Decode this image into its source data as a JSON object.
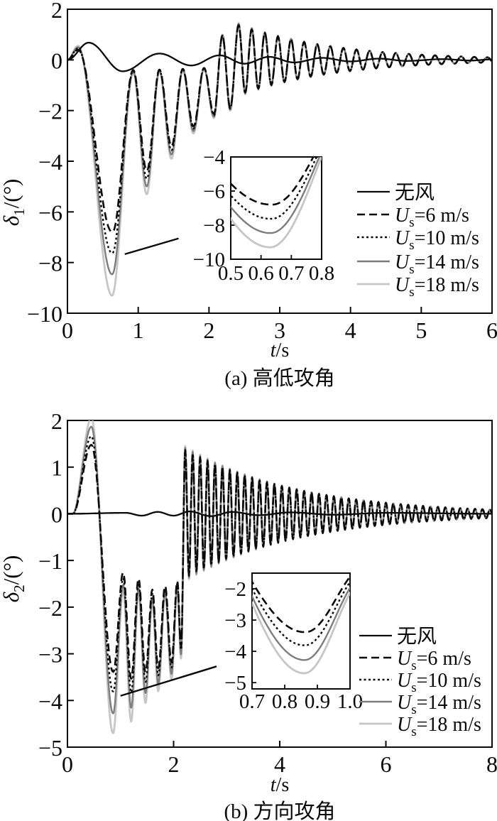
{
  "figure": {
    "background": "#ffffff"
  },
  "colors": {
    "black": "#0a0a0a",
    "gray": "#7d7d7d",
    "lightgray": "#c6c6c6"
  },
  "legend_labels": [
    {
      "key": "no-wind",
      "text": "无风"
    },
    {
      "key": "us-6",
      "var": "U",
      "sub": "s",
      "rest": "=6 m/s"
    },
    {
      "key": "us-10",
      "var": "U",
      "sub": "s",
      "rest": "=10 m/s"
    },
    {
      "key": "us-14",
      "var": "U",
      "sub": "s",
      "rest": "=14 m/s"
    },
    {
      "key": "us-18",
      "var": "U",
      "sub": "s",
      "rest": "=18 m/s"
    }
  ],
  "chart_data": [
    {
      "type": "line",
      "panel": "a",
      "caption": "(a) 高低攻角",
      "xlabel_var": "t",
      "xlabel_rest": "/s",
      "ylabel": {
        "sym": "δ",
        "sub": "1",
        "rest": "/(°)"
      },
      "xlim": [
        0,
        6
      ],
      "ylim": [
        -10,
        2
      ],
      "xticks": [
        0,
        1,
        2,
        3,
        4,
        5,
        6
      ],
      "yticks": [
        2,
        0,
        -2,
        -4,
        -6,
        -8,
        -10
      ],
      "grid": false,
      "legend_position": "right-middle",
      "series": [
        {
          "key": "no-wind",
          "name": "无风",
          "kind": "own",
          "style": {
            "color": "black",
            "dash": "solid",
            "width": 2.3
          },
          "points": [
            [
              0,
              0
            ],
            [
              0.3,
              0.68
            ],
            [
              0.78,
              -0.45
            ],
            [
              1.3,
              0.25
            ],
            [
              1.75,
              -0.22
            ],
            [
              2.15,
              0.18
            ],
            [
              2.5,
              -0.15
            ],
            [
              2.85,
              0.12
            ],
            [
              3.2,
              -0.1
            ],
            [
              3.6,
              0.08
            ],
            [
              4.0,
              -0.06
            ],
            [
              4.4,
              0.05
            ],
            [
              4.8,
              -0.04
            ],
            [
              5.3,
              0.03
            ],
            [
              5.7,
              -0.025
            ],
            [
              6,
              0.02
            ]
          ]
        },
        {
          "key": "us-6",
          "name": "Us=6 m/s",
          "kind": "wind",
          "scale": 0.73,
          "style": {
            "color": "black",
            "dash": "dashed",
            "width": 2.6
          }
        },
        {
          "key": "us-10",
          "name": "Us=10 m/s",
          "kind": "wind",
          "scale": 0.82,
          "style": {
            "color": "black",
            "dash": "dotted",
            "width": 2.4
          }
        },
        {
          "key": "us-14",
          "name": "Us=14 m/s",
          "kind": "wind",
          "scale": 0.91,
          "style": {
            "color": "gray",
            "dash": "solid",
            "width": 2.4
          }
        },
        {
          "key": "us-18",
          "name": "Us=18 m/s",
          "kind": "wind",
          "scale": 1.0,
          "style": {
            "color": "lightgray",
            "dash": "solid",
            "width": 2.8
          }
        }
      ],
      "wind_model": {
        "extrema": [
          [
            0,
            0
          ],
          [
            0.15,
            0.55
          ],
          [
            0.63,
            -9.3
          ],
          [
            0.93,
            -0.5
          ],
          [
            1.12,
            -5.3
          ],
          [
            1.3,
            -0.45
          ],
          [
            1.47,
            -3.9
          ],
          [
            1.63,
            -0.4
          ],
          [
            1.78,
            -2.9
          ],
          [
            1.93,
            -0.35
          ],
          [
            2.07,
            -2.3
          ],
          [
            2.19,
            1.0
          ],
          [
            2.3,
            -2.0
          ],
          [
            2.42,
            1.45
          ]
        ],
        "tail": {
          "t0": 2.42,
          "A": 1.45,
          "k": 0.75,
          "T": 0.185
        },
        "scale_ref": 0.63,
        "scale_relax": 0.9
      },
      "first_dip_minima": {
        "us-6": -6.8,
        "us-10": -7.6,
        "us-14": -8.5,
        "us-18": -9.3,
        "t_min": 0.63
      },
      "inset": {
        "xlim": [
          0.5,
          0.8
        ],
        "ylim": [
          -10,
          -4
        ],
        "xticks": [
          0.5,
          0.6,
          0.7,
          0.8
        ],
        "yticks": [
          -4,
          -6,
          -8,
          -10
        ]
      },
      "pointer_line": {
        "x1": 0.81,
        "y1": -7.67,
        "x2": 1.57,
        "y2": -7.05
      }
    },
    {
      "type": "line",
      "panel": "b",
      "caption": "(b) 方向攻角",
      "xlabel_var": "t",
      "xlabel_rest": "/s",
      "ylabel": {
        "sym": "δ",
        "sub": "2",
        "rest": "/(°)"
      },
      "xlim": [
        0,
        8
      ],
      "ylim": [
        -5,
        2
      ],
      "xticks": [
        0,
        2,
        4,
        6,
        8
      ],
      "yticks": [
        2,
        1,
        0,
        -1,
        -2,
        -3,
        -4,
        -5
      ],
      "grid": false,
      "legend_position": "right-middle",
      "series": [
        {
          "key": "no-wind",
          "name": "无风",
          "kind": "own",
          "style": {
            "color": "black",
            "dash": "solid",
            "width": 2.3
          },
          "points": [
            [
              0,
              0
            ],
            [
              1.1,
              0.02
            ],
            [
              1.4,
              -0.04
            ],
            [
              1.7,
              0.04
            ],
            [
              2.0,
              -0.04
            ],
            [
              2.3,
              0.05
            ],
            [
              2.7,
              -0.05
            ],
            [
              3.1,
              0.04
            ],
            [
              3.6,
              -0.03
            ],
            [
              4.2,
              0.03
            ],
            [
              5.0,
              -0.02
            ],
            [
              6.0,
              0.02
            ],
            [
              8,
              0
            ]
          ]
        },
        {
          "key": "us-6",
          "name": "Us=6 m/s",
          "kind": "wind",
          "scale": 0.72,
          "style": {
            "color": "black",
            "dash": "dashed",
            "width": 2.6
          }
        },
        {
          "key": "us-10",
          "name": "Us=10 m/s",
          "kind": "wind",
          "scale": 0.81,
          "style": {
            "color": "black",
            "dash": "dotted",
            "width": 2.4
          }
        },
        {
          "key": "us-14",
          "name": "Us=14 m/s",
          "kind": "wind",
          "scale": 0.91,
          "style": {
            "color": "gray",
            "dash": "solid",
            "width": 2.4
          }
        },
        {
          "key": "us-18",
          "name": "Us=18 m/s",
          "kind": "wind",
          "scale": 1.0,
          "style": {
            "color": "lightgray",
            "dash": "solid",
            "width": 2.8
          }
        }
      ],
      "wind_model": {
        "extrema": [
          [
            0,
            0
          ],
          [
            0.1,
            0
          ],
          [
            0.45,
            2.05
          ],
          [
            0.86,
            -4.7
          ],
          [
            1.05,
            -1.65
          ],
          [
            1.2,
            -4.45
          ],
          [
            1.34,
            -1.7
          ],
          [
            1.47,
            -4.05
          ],
          [
            1.6,
            -1.9
          ],
          [
            1.71,
            -3.8
          ],
          [
            1.84,
            -1.75
          ],
          [
            1.96,
            -3.55
          ],
          [
            2.07,
            -1.6
          ],
          [
            2.14,
            -3.1
          ],
          [
            2.22,
            1.45
          ]
        ],
        "tail": {
          "t0": 2.22,
          "A": 1.45,
          "k": 0.48,
          "T": 0.14
        },
        "scale_ref": 0.86,
        "scale_relax": 0.9
      },
      "first_dip_minima": {
        "us-6": -3.45,
        "us-10": -3.95,
        "us-14": -4.4,
        "us-18": -4.7,
        "t_min": 0.86
      },
      "inset": {
        "xlim": [
          0.7,
          1.0
        ],
        "ylim": [
          -5.2,
          -1.5
        ],
        "xticks": [
          0.7,
          0.8,
          0.9,
          1.0
        ],
        "yticks": [
          -2,
          -3,
          -4,
          -5
        ]
      },
      "pointer_line": {
        "x1": 1.0,
        "y1": -3.9,
        "x2": 2.81,
        "y2": -3.27
      }
    }
  ]
}
